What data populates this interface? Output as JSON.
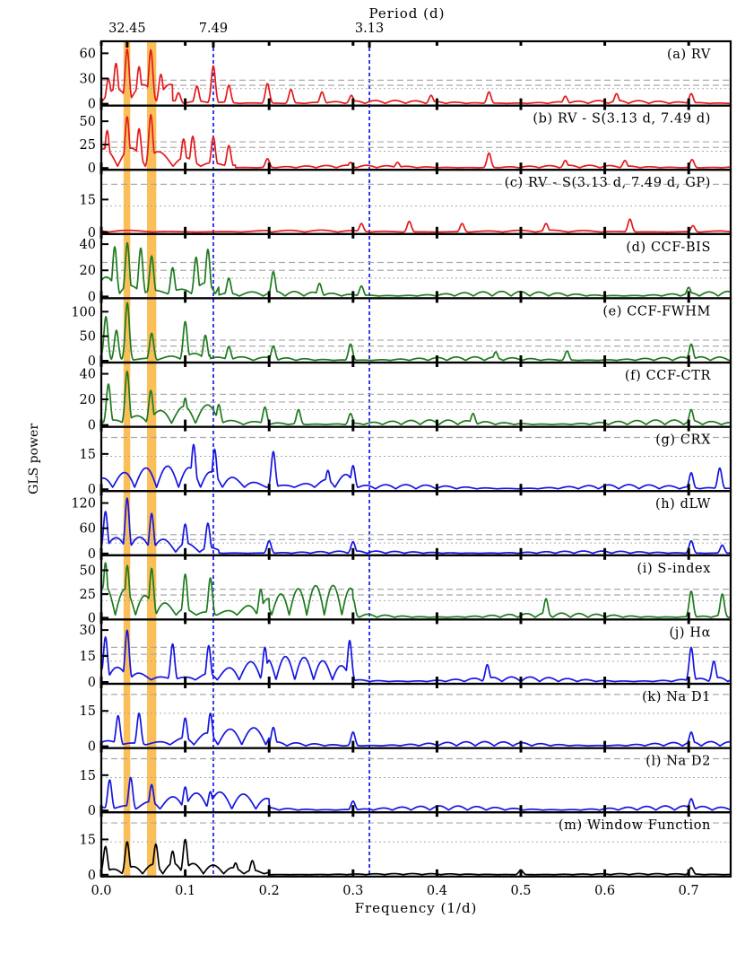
{
  "chart_data": {
    "type": "line",
    "ylabel": "GLS power",
    "xlabel": "Frequency (1/d)",
    "top_axis_label": "Period (d)",
    "xlim": [
      0.0,
      0.75
    ],
    "x_ticks": [
      "0.0",
      "0.1",
      "0.2",
      "0.3",
      "0.4",
      "0.5",
      "0.6",
      "0.7"
    ],
    "top_ticks": [
      {
        "label": "32.45",
        "frequency": 0.0308
      },
      {
        "label": "7.49",
        "frequency": 0.1335
      },
      {
        "label": "3.13",
        "frequency": 0.3195
      }
    ],
    "vertical_lines": [
      0.1335,
      0.3195
    ],
    "vertical_line_color": "#2222ee",
    "highlight_bands": [
      {
        "from": 0.0265,
        "to": 0.0345
      },
      {
        "from": 0.0545,
        "to": 0.0655
      }
    ],
    "highlight_color": "#f8a920",
    "panels": [
      {
        "label": "(a) RV",
        "color": "#e41a1c",
        "ylim": [
          0,
          70
        ],
        "yticks": [
          "0",
          "30",
          "60"
        ],
        "yvals": [
          0,
          30,
          60
        ],
        "dashed": [
          28,
          22
        ],
        "dotted": [
          18
        ],
        "peaks": [
          [
            0.0308,
            65
          ],
          [
            0.059,
            64
          ],
          [
            0.0175,
            48
          ],
          [
            0.045,
            44
          ],
          [
            0.0085,
            30
          ],
          [
            0.071,
            35
          ],
          [
            0.092,
            13
          ],
          [
            0.114,
            21
          ],
          [
            0.1335,
            45
          ],
          [
            0.152,
            22
          ],
          [
            0.198,
            24
          ],
          [
            0.226,
            17
          ],
          [
            0.263,
            14
          ],
          [
            0.298,
            10
          ],
          [
            0.393,
            10
          ],
          [
            0.462,
            14
          ],
          [
            0.553,
            9
          ],
          [
            0.614,
            12
          ],
          [
            0.703,
            12
          ]
        ],
        "base": 4,
        "base_high": 24,
        "base_split": 0.085,
        "freq_low": 95,
        "freq_high": 130
      },
      {
        "label": "(b) RV - S(3.13 d, 7.49 d)",
        "color": "#e41a1c",
        "ylim": [
          0,
          63
        ],
        "yticks": [
          "0",
          "25",
          "50"
        ],
        "yvals": [
          0,
          25,
          50
        ],
        "dashed": [
          28,
          22
        ],
        "dotted": [
          18
        ],
        "peaks": [
          [
            0.0308,
            55
          ],
          [
            0.059,
            57
          ],
          [
            0.007,
            40
          ],
          [
            0.045,
            42
          ],
          [
            0.098,
            31
          ],
          [
            0.109,
            34
          ],
          [
            0.1335,
            33
          ],
          [
            0.152,
            24
          ],
          [
            0.198,
            10
          ],
          [
            0.297,
            6
          ],
          [
            0.353,
            6
          ],
          [
            0.462,
            16
          ],
          [
            0.553,
            8
          ],
          [
            0.624,
            8
          ],
          [
            0.704,
            9
          ]
        ],
        "base": 3,
        "base_high": 22,
        "base_split": 0.16,
        "freq_low": 95,
        "freq_high": 130
      },
      {
        "label": "(c) RV - S(3.13 d, 7.49 d, GP)",
        "color": "#e41a1c",
        "ylim": [
          0,
          27
        ],
        "yticks": [
          "0",
          "15"
        ],
        "yvals": [
          0,
          15
        ],
        "dashed": [
          22
        ],
        "dotted": [
          12
        ],
        "peaks": [
          [
            0.31,
            4
          ],
          [
            0.367,
            5
          ],
          [
            0.43,
            4
          ],
          [
            0.53,
            4
          ],
          [
            0.63,
            6
          ],
          [
            0.705,
            3
          ]
        ],
        "base": 1,
        "base_high": 1.2,
        "base_split": 0.2,
        "freq_low": 60,
        "freq_high": 80
      },
      {
        "label": "(d) CCF-BIS",
        "color": "#1e7a1e",
        "ylim": [
          0,
          45
        ],
        "yticks": [
          "0",
          "20",
          "40"
        ],
        "yvals": [
          0,
          20,
          40
        ],
        "dashed": [
          26,
          20
        ],
        "dotted": [
          14
        ],
        "peaks": [
          [
            0.016,
            38
          ],
          [
            0.031,
            41
          ],
          [
            0.047,
            37
          ],
          [
            0.06,
            31
          ],
          [
            0.085,
            22
          ],
          [
            0.113,
            30
          ],
          [
            0.127,
            36
          ],
          [
            0.152,
            14
          ],
          [
            0.205,
            19
          ],
          [
            0.26,
            10
          ],
          [
            0.31,
            8
          ],
          [
            0.7,
            7
          ]
        ],
        "base": 4,
        "base_high": 26,
        "base_split": 0.14,
        "freq_low": 110,
        "freq_high": 140
      },
      {
        "label": "(e) CCF-FWHM",
        "color": "#1e7a1e",
        "ylim": [
          0,
          120
        ],
        "yticks": [
          "0",
          "50",
          "100"
        ],
        "yvals": [
          0,
          50,
          100
        ],
        "dashed": [
          42,
          30
        ],
        "dotted": [
          20
        ],
        "peaks": [
          [
            0.0055,
            90
          ],
          [
            0.018,
            62
          ],
          [
            0.031,
            118
          ],
          [
            0.06,
            56
          ],
          [
            0.1,
            80
          ],
          [
            0.124,
            52
          ],
          [
            0.152,
            29
          ],
          [
            0.205,
            30
          ],
          [
            0.297,
            34
          ],
          [
            0.703,
            34
          ],
          [
            0.555,
            20
          ],
          [
            0.47,
            18
          ]
        ],
        "base": 8,
        "base_high": 22,
        "base_split": 0.13,
        "freq_low": 110,
        "freq_high": 140
      },
      {
        "label": "(f) CCF-CTR",
        "color": "#1e7a1e",
        "ylim": [
          0,
          46
        ],
        "yticks": [
          "0",
          "20",
          "40"
        ],
        "yvals": [
          0,
          20,
          40
        ],
        "dashed": [
          24,
          18
        ],
        "dotted": [
          12
        ],
        "peaks": [
          [
            0.0085,
            32
          ],
          [
            0.0308,
            42
          ],
          [
            0.059,
            27
          ],
          [
            0.1,
            21
          ],
          [
            0.14,
            16
          ],
          [
            0.195,
            14
          ],
          [
            0.235,
            12
          ],
          [
            0.297,
            9
          ],
          [
            0.443,
            9
          ],
          [
            0.703,
            12
          ]
        ],
        "base": 4,
        "base_high": 16,
        "base_split": 0.14,
        "freq_low": 110,
        "freq_high": 140
      },
      {
        "label": "(g) CRX",
        "color": "#1515e0",
        "ylim": [
          0,
          25
        ],
        "yticks": [
          "0",
          "15"
        ],
        "yvals": [
          0,
          15
        ],
        "dashed": [
          22
        ],
        "dotted": [
          14
        ],
        "peaks": [
          [
            0.11,
            19
          ],
          [
            0.135,
            17
          ],
          [
            0.205,
            16
          ],
          [
            0.27,
            8
          ],
          [
            0.3,
            10
          ],
          [
            0.703,
            7
          ],
          [
            0.737,
            9
          ]
        ],
        "base": 2,
        "base_high": 10,
        "base_split": 0.3,
        "freq_low": 120,
        "freq_high": 130
      },
      {
        "label": "(h) dLW",
        "color": "#1515e0",
        "ylim": [
          0,
          140
        ],
        "yticks": [
          "0",
          "60",
          "120"
        ],
        "yvals": [
          0,
          60,
          120
        ],
        "dashed": [
          45,
          33
        ],
        "dotted": [
          25
        ],
        "peaks": [
          [
            0.005,
            100
          ],
          [
            0.0308,
            132
          ],
          [
            0.06,
            95
          ],
          [
            0.1,
            70
          ],
          [
            0.127,
            72
          ],
          [
            0.2,
            30
          ],
          [
            0.3,
            28
          ],
          [
            0.703,
            30
          ],
          [
            0.74,
            20
          ]
        ],
        "base": 6,
        "base_high": 40,
        "base_split": 0.14,
        "freq_low": 110,
        "freq_high": 140
      },
      {
        "label": "(i) S-index",
        "color": "#1e7a1e",
        "ylim": [
          0,
          62
        ],
        "yticks": [
          "0",
          "25",
          "50"
        ],
        "yvals": [
          0,
          25,
          50
        ],
        "dashed": [
          30,
          24
        ],
        "dotted": [
          18
        ],
        "peaks": [
          [
            0.005,
            58
          ],
          [
            0.031,
            55
          ],
          [
            0.06,
            52
          ],
          [
            0.1,
            46
          ],
          [
            0.13,
            42
          ],
          [
            0.19,
            30
          ],
          [
            0.3,
            20
          ],
          [
            0.53,
            20
          ],
          [
            0.703,
            28
          ],
          [
            0.74,
            25
          ]
        ],
        "base": 5,
        "base_high": 35,
        "base_split": 0.3,
        "freq_low": 130,
        "freq_high": 150
      },
      {
        "label": "(j) Hα",
        "color": "#1515e0",
        "ylim": [
          0,
          34
        ],
        "yticks": [
          "0",
          "15",
          "30"
        ],
        "yvals": [
          0,
          15,
          30
        ],
        "dashed": [
          20,
          16
        ],
        "dotted": [
          12
        ],
        "peaks": [
          [
            0.005,
            26
          ],
          [
            0.0308,
            30
          ],
          [
            0.085,
            22
          ],
          [
            0.128,
            21
          ],
          [
            0.195,
            20
          ],
          [
            0.296,
            24
          ],
          [
            0.46,
            10
          ],
          [
            0.703,
            20
          ],
          [
            0.73,
            12
          ]
        ],
        "base": 3,
        "base_high": 15,
        "base_split": 0.3,
        "freq_low": 120,
        "freq_high": 140
      },
      {
        "label": "(k) Na D1",
        "color": "#1515e0",
        "ylim": [
          0,
          25
        ],
        "yticks": [
          "0",
          "15"
        ],
        "yvals": [
          0,
          15
        ],
        "dashed": [
          22
        ],
        "dotted": [
          14
        ],
        "peaks": [
          [
            0.02,
            13
          ],
          [
            0.045,
            14
          ],
          [
            0.1,
            12
          ],
          [
            0.13,
            14
          ],
          [
            0.205,
            8
          ],
          [
            0.3,
            6
          ],
          [
            0.703,
            6
          ]
        ],
        "base": 2,
        "base_high": 8,
        "base_split": 0.2,
        "freq_low": 110,
        "freq_high": 140
      },
      {
        "label": "(l) Na D2",
        "color": "#1515e0",
        "ylim": [
          0,
          25
        ],
        "yticks": [
          "0",
          "15"
        ],
        "yvals": [
          0,
          15
        ],
        "dashed": [
          22
        ],
        "dotted": [
          14
        ],
        "peaks": [
          [
            0.01,
            13
          ],
          [
            0.035,
            14
          ],
          [
            0.06,
            11
          ],
          [
            0.1,
            10
          ],
          [
            0.13,
            8
          ],
          [
            0.17,
            6
          ],
          [
            0.3,
            4
          ],
          [
            0.703,
            5
          ]
        ],
        "base": 2,
        "base_high": 8,
        "base_split": 0.2,
        "freq_low": 110,
        "freq_high": 140
      },
      {
        "label": "(m) Window Function",
        "color": "#000000",
        "ylim": [
          0,
          25
        ],
        "yticks": [
          "0",
          "15"
        ],
        "yvals": [
          0,
          15
        ],
        "dashed": [
          22
        ],
        "dotted": [
          14
        ],
        "peaks": [
          [
            0.005,
            12
          ],
          [
            0.0308,
            14
          ],
          [
            0.065,
            13
          ],
          [
            0.085,
            10
          ],
          [
            0.1,
            15
          ],
          [
            0.16,
            5
          ],
          [
            0.18,
            6
          ],
          [
            0.5,
            2
          ],
          [
            0.703,
            3
          ]
        ],
        "base": 0.5,
        "base_high": 5,
        "base_split": 0.2,
        "freq_low": 130,
        "freq_high": 140
      }
    ]
  }
}
